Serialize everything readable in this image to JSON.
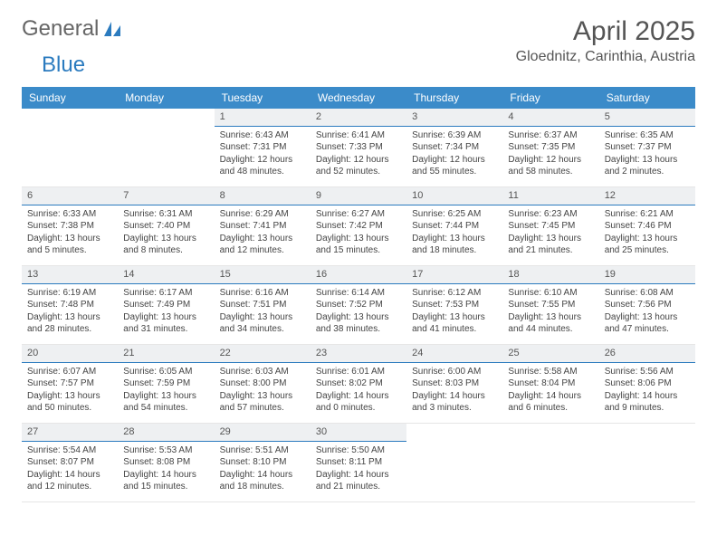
{
  "logo": {
    "part1": "General",
    "part2": "Blue"
  },
  "header": {
    "month": "April 2025",
    "location": "Gloednitz, Carinthia, Austria"
  },
  "colors": {
    "header_bg": "#3b8bc9",
    "header_text": "#ffffff",
    "day_num_bg": "#eef0f2",
    "day_num_border": "#2b7bbf",
    "text": "#444444",
    "logo_blue": "#2b7bbf",
    "page_bg": "#ffffff"
  },
  "calendar": {
    "dow": [
      "Sunday",
      "Monday",
      "Tuesday",
      "Wednesday",
      "Thursday",
      "Friday",
      "Saturday"
    ],
    "font_size_body": 10,
    "font_size_daynum": 11,
    "font_size_dow": 12,
    "weeks": [
      [
        {
          "n": "",
          "sunrise": "",
          "sunset": "",
          "daylight": ""
        },
        {
          "n": "",
          "sunrise": "",
          "sunset": "",
          "daylight": ""
        },
        {
          "n": "1",
          "sunrise": "Sunrise: 6:43 AM",
          "sunset": "Sunset: 7:31 PM",
          "daylight": "Daylight: 12 hours and 48 minutes."
        },
        {
          "n": "2",
          "sunrise": "Sunrise: 6:41 AM",
          "sunset": "Sunset: 7:33 PM",
          "daylight": "Daylight: 12 hours and 52 minutes."
        },
        {
          "n": "3",
          "sunrise": "Sunrise: 6:39 AM",
          "sunset": "Sunset: 7:34 PM",
          "daylight": "Daylight: 12 hours and 55 minutes."
        },
        {
          "n": "4",
          "sunrise": "Sunrise: 6:37 AM",
          "sunset": "Sunset: 7:35 PM",
          "daylight": "Daylight: 12 hours and 58 minutes."
        },
        {
          "n": "5",
          "sunrise": "Sunrise: 6:35 AM",
          "sunset": "Sunset: 7:37 PM",
          "daylight": "Daylight: 13 hours and 2 minutes."
        }
      ],
      [
        {
          "n": "6",
          "sunrise": "Sunrise: 6:33 AM",
          "sunset": "Sunset: 7:38 PM",
          "daylight": "Daylight: 13 hours and 5 minutes."
        },
        {
          "n": "7",
          "sunrise": "Sunrise: 6:31 AM",
          "sunset": "Sunset: 7:40 PM",
          "daylight": "Daylight: 13 hours and 8 minutes."
        },
        {
          "n": "8",
          "sunrise": "Sunrise: 6:29 AM",
          "sunset": "Sunset: 7:41 PM",
          "daylight": "Daylight: 13 hours and 12 minutes."
        },
        {
          "n": "9",
          "sunrise": "Sunrise: 6:27 AM",
          "sunset": "Sunset: 7:42 PM",
          "daylight": "Daylight: 13 hours and 15 minutes."
        },
        {
          "n": "10",
          "sunrise": "Sunrise: 6:25 AM",
          "sunset": "Sunset: 7:44 PM",
          "daylight": "Daylight: 13 hours and 18 minutes."
        },
        {
          "n": "11",
          "sunrise": "Sunrise: 6:23 AM",
          "sunset": "Sunset: 7:45 PM",
          "daylight": "Daylight: 13 hours and 21 minutes."
        },
        {
          "n": "12",
          "sunrise": "Sunrise: 6:21 AM",
          "sunset": "Sunset: 7:46 PM",
          "daylight": "Daylight: 13 hours and 25 minutes."
        }
      ],
      [
        {
          "n": "13",
          "sunrise": "Sunrise: 6:19 AM",
          "sunset": "Sunset: 7:48 PM",
          "daylight": "Daylight: 13 hours and 28 minutes."
        },
        {
          "n": "14",
          "sunrise": "Sunrise: 6:17 AM",
          "sunset": "Sunset: 7:49 PM",
          "daylight": "Daylight: 13 hours and 31 minutes."
        },
        {
          "n": "15",
          "sunrise": "Sunrise: 6:16 AM",
          "sunset": "Sunset: 7:51 PM",
          "daylight": "Daylight: 13 hours and 34 minutes."
        },
        {
          "n": "16",
          "sunrise": "Sunrise: 6:14 AM",
          "sunset": "Sunset: 7:52 PM",
          "daylight": "Daylight: 13 hours and 38 minutes."
        },
        {
          "n": "17",
          "sunrise": "Sunrise: 6:12 AM",
          "sunset": "Sunset: 7:53 PM",
          "daylight": "Daylight: 13 hours and 41 minutes."
        },
        {
          "n": "18",
          "sunrise": "Sunrise: 6:10 AM",
          "sunset": "Sunset: 7:55 PM",
          "daylight": "Daylight: 13 hours and 44 minutes."
        },
        {
          "n": "19",
          "sunrise": "Sunrise: 6:08 AM",
          "sunset": "Sunset: 7:56 PM",
          "daylight": "Daylight: 13 hours and 47 minutes."
        }
      ],
      [
        {
          "n": "20",
          "sunrise": "Sunrise: 6:07 AM",
          "sunset": "Sunset: 7:57 PM",
          "daylight": "Daylight: 13 hours and 50 minutes."
        },
        {
          "n": "21",
          "sunrise": "Sunrise: 6:05 AM",
          "sunset": "Sunset: 7:59 PM",
          "daylight": "Daylight: 13 hours and 54 minutes."
        },
        {
          "n": "22",
          "sunrise": "Sunrise: 6:03 AM",
          "sunset": "Sunset: 8:00 PM",
          "daylight": "Daylight: 13 hours and 57 minutes."
        },
        {
          "n": "23",
          "sunrise": "Sunrise: 6:01 AM",
          "sunset": "Sunset: 8:02 PM",
          "daylight": "Daylight: 14 hours and 0 minutes."
        },
        {
          "n": "24",
          "sunrise": "Sunrise: 6:00 AM",
          "sunset": "Sunset: 8:03 PM",
          "daylight": "Daylight: 14 hours and 3 minutes."
        },
        {
          "n": "25",
          "sunrise": "Sunrise: 5:58 AM",
          "sunset": "Sunset: 8:04 PM",
          "daylight": "Daylight: 14 hours and 6 minutes."
        },
        {
          "n": "26",
          "sunrise": "Sunrise: 5:56 AM",
          "sunset": "Sunset: 8:06 PM",
          "daylight": "Daylight: 14 hours and 9 minutes."
        }
      ],
      [
        {
          "n": "27",
          "sunrise": "Sunrise: 5:54 AM",
          "sunset": "Sunset: 8:07 PM",
          "daylight": "Daylight: 14 hours and 12 minutes."
        },
        {
          "n": "28",
          "sunrise": "Sunrise: 5:53 AM",
          "sunset": "Sunset: 8:08 PM",
          "daylight": "Daylight: 14 hours and 15 minutes."
        },
        {
          "n": "29",
          "sunrise": "Sunrise: 5:51 AM",
          "sunset": "Sunset: 8:10 PM",
          "daylight": "Daylight: 14 hours and 18 minutes."
        },
        {
          "n": "30",
          "sunrise": "Sunrise: 5:50 AM",
          "sunset": "Sunset: 8:11 PM",
          "daylight": "Daylight: 14 hours and 21 minutes."
        },
        {
          "n": "",
          "sunrise": "",
          "sunset": "",
          "daylight": ""
        },
        {
          "n": "",
          "sunrise": "",
          "sunset": "",
          "daylight": ""
        },
        {
          "n": "",
          "sunrise": "",
          "sunset": "",
          "daylight": ""
        }
      ]
    ]
  }
}
